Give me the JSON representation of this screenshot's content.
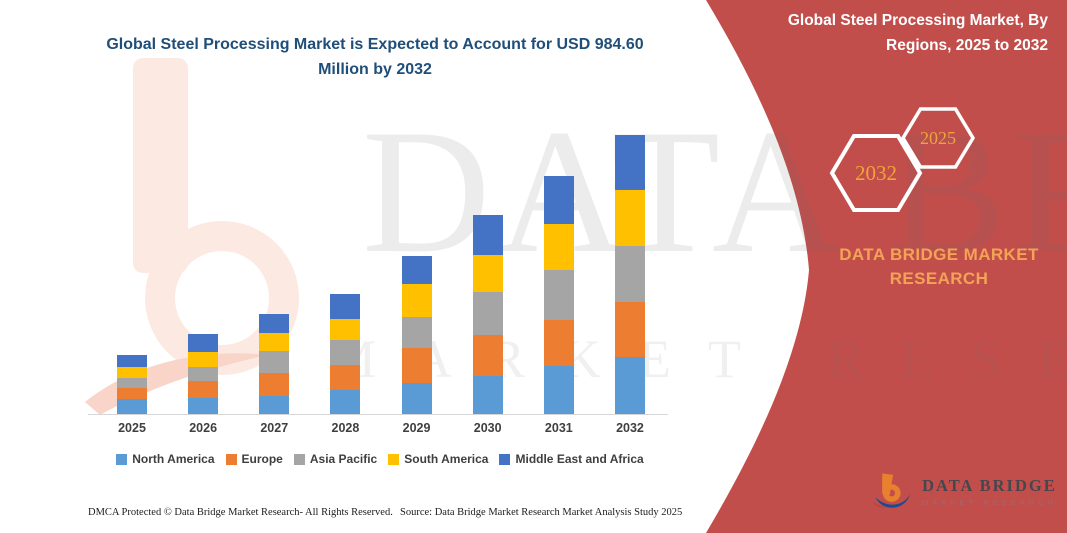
{
  "header": {
    "left_title": "Global Steel Processing Market is Expected to Account for USD 984.60 Million by 2032",
    "right_title": "Global Steel Processing Market, By Regions, 2025 to 2032"
  },
  "side_panel": {
    "background_color": "#c24e4b",
    "accent_color": "#f2a355",
    "hexagons": [
      {
        "label": "2032"
      },
      {
        "label": "2025"
      }
    ],
    "brand_text": "DATA BRIDGE MARKET RESEARCH"
  },
  "watermark": {
    "line1": "DATA BRIDGE",
    "line2": "MARKET RESEARCH"
  },
  "logo": {
    "name": "DATA BRIDGE",
    "subtitle": "MARKET RESEARCH"
  },
  "footer": {
    "dmca_text": "DMCA Protected © Data Bridge Market Research-  All Rights Reserved.",
    "source_text": "Source: Data Bridge Market Research  Market Analysis Study 2025"
  },
  "chart_data": {
    "type": "bar",
    "stacked": true,
    "title": "Global Steel Processing Market is Expected to Account for USD 984.60 Million by 2032",
    "unit": "USD Million",
    "stated_total_2032": 984.6,
    "categories": [
      "2025",
      "2026",
      "2027",
      "2028",
      "2029",
      "2030",
      "2031",
      "2032"
    ],
    "series": [
      {
        "name": "North America",
        "color": "#5B9BD5",
        "values": [
          52.9,
          55.1,
          64.6,
          85.8,
          109.4,
          135.2,
          168.0,
          200.0
        ]
      },
      {
        "name": "Europe",
        "color": "#ED7D31",
        "values": [
          38.8,
          62.5,
          78.7,
          85.8,
          122.1,
          144.7,
          164.8,
          196.0
        ]
      },
      {
        "name": "Asia Pacific",
        "color": "#A5A5A5",
        "values": [
          35.3,
          49.4,
          79.1,
          88.2,
          109.4,
          149.3,
          174.0,
          196.5
        ]
      },
      {
        "name": "South America",
        "color": "#FFC000",
        "values": [
          37.8,
          52.9,
          63.5,
          76.6,
          118.9,
          133.0,
          163.7,
          197.8
        ]
      },
      {
        "name": "Middle East and Africa",
        "color": "#4472C4",
        "values": [
          43.4,
          62.5,
          67.1,
          88.2,
          98.8,
          138.7,
          170.5,
          194.3
        ]
      }
    ],
    "totals_by_year": [
      208.2,
      282.4,
      353.0,
      424.6,
      558.6,
      700.9,
      841.0,
      984.6
    ],
    "value_axis_visible": false,
    "grid": false,
    "legend_position": "bottom"
  }
}
